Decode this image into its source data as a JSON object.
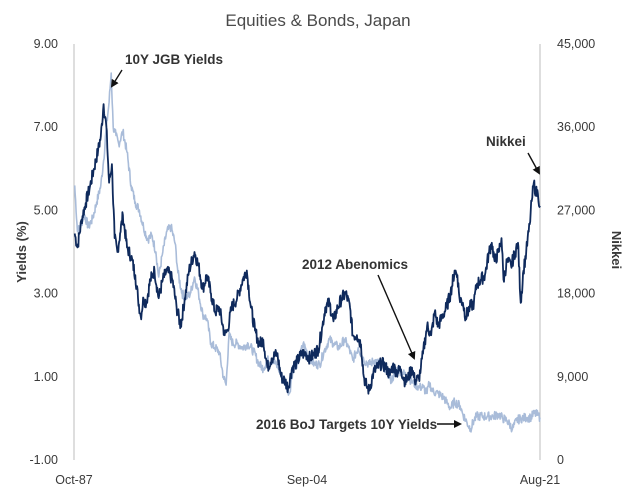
{
  "chart_data": {
    "type": "line",
    "title": "Equities & Bonds, Japan",
    "ylabel_left": "Yields (%)",
    "ylabel_right": "Nikkei",
    "x_range": [
      "Oct-87",
      "Aug-21"
    ],
    "x_tick_labels": [
      "Oct-87",
      "Sep-04",
      "Aug-21"
    ],
    "y_left_range": [
      -1,
      9
    ],
    "y_left_ticks": [
      "9.00",
      "7.00",
      "5.00",
      "3.00",
      "1.00",
      "-1.00"
    ],
    "y_right_range": [
      0,
      45000
    ],
    "y_right_ticks": [
      "45,000",
      "36,000",
      "27,000",
      "18,000",
      "9,000",
      "0"
    ],
    "grid": false,
    "series": [
      {
        "name": "Nikkei",
        "axis": "right",
        "color": "#0f2a5c",
        "points": [
          [
            1987.8,
            24500
          ],
          [
            1988.0,
            23000
          ],
          [
            1988.3,
            26000
          ],
          [
            1988.6,
            27800
          ],
          [
            1988.9,
            29500
          ],
          [
            1989.2,
            31500
          ],
          [
            1989.5,
            33500
          ],
          [
            1989.7,
            35000
          ],
          [
            1989.9,
            38500
          ],
          [
            1990.1,
            36000
          ],
          [
            1990.3,
            30000
          ],
          [
            1990.5,
            32000
          ],
          [
            1990.7,
            24000
          ],
          [
            1990.9,
            22500
          ],
          [
            1991.1,
            24500
          ],
          [
            1991.3,
            26500
          ],
          [
            1991.6,
            23000
          ],
          [
            1991.9,
            22000
          ],
          [
            1992.2,
            20000
          ],
          [
            1992.4,
            17500
          ],
          [
            1992.6,
            15500
          ],
          [
            1992.8,
            17500
          ],
          [
            1993.0,
            17000
          ],
          [
            1993.3,
            19500
          ],
          [
            1993.6,
            20500
          ],
          [
            1993.9,
            17500
          ],
          [
            1994.2,
            19500
          ],
          [
            1994.5,
            20500
          ],
          [
            1994.9,
            19500
          ],
          [
            1995.2,
            16500
          ],
          [
            1995.5,
            14500
          ],
          [
            1995.8,
            17500
          ],
          [
            1996.1,
            20500
          ],
          [
            1996.5,
            22500
          ],
          [
            1996.8,
            21000
          ],
          [
            1997.1,
            18500
          ],
          [
            1997.4,
            20000
          ],
          [
            1997.7,
            18000
          ],
          [
            1998.0,
            16000
          ],
          [
            1998.3,
            16500
          ],
          [
            1998.7,
            13500
          ],
          [
            1998.9,
            14000
          ],
          [
            1999.2,
            16500
          ],
          [
            1999.6,
            17500
          ],
          [
            2000.0,
            19500
          ],
          [
            2000.3,
            20500
          ],
          [
            2000.6,
            16500
          ],
          [
            2000.9,
            14000
          ],
          [
            2001.2,
            12500
          ],
          [
            2001.5,
            13000
          ],
          [
            2001.8,
            10000
          ],
          [
            2002.1,
            11000
          ],
          [
            2002.5,
            11500
          ],
          [
            2002.8,
            9000
          ],
          [
            2003.1,
            8500
          ],
          [
            2003.3,
            7800
          ],
          [
            2003.6,
            10000
          ],
          [
            2003.9,
            10500
          ],
          [
            2004.3,
            11500
          ],
          [
            2004.6,
            11500
          ],
          [
            2004.9,
            11000
          ],
          [
            2005.2,
            11500
          ],
          [
            2005.5,
            12000
          ],
          [
            2005.8,
            14500
          ],
          [
            2006.0,
            16500
          ],
          [
            2006.3,
            17000
          ],
          [
            2006.6,
            15000
          ],
          [
            2006.9,
            16500
          ],
          [
            2007.2,
            17500
          ],
          [
            2007.5,
            18000
          ],
          [
            2007.8,
            16500
          ],
          [
            2008.0,
            13500
          ],
          [
            2008.3,
            13500
          ],
          [
            2008.6,
            12500
          ],
          [
            2008.8,
            9000
          ],
          [
            2009.0,
            8000
          ],
          [
            2009.2,
            7500
          ],
          [
            2009.5,
            9500
          ],
          [
            2009.8,
            10000
          ],
          [
            2010.1,
            10500
          ],
          [
            2010.4,
            10000
          ],
          [
            2010.7,
            9200
          ],
          [
            2010.9,
            10200
          ],
          [
            2011.2,
            9500
          ],
          [
            2011.5,
            9800
          ],
          [
            2011.8,
            8500
          ],
          [
            2012.0,
            8800
          ],
          [
            2012.3,
            10000
          ],
          [
            2012.5,
            8600
          ],
          [
            2012.8,
            8800
          ],
          [
            2012.95,
            10000
          ],
          [
            2013.1,
            11500
          ],
          [
            2013.4,
            14500
          ],
          [
            2013.7,
            13500
          ],
          [
            2013.95,
            16000
          ],
          [
            2014.2,
            14500
          ],
          [
            2014.5,
            15500
          ],
          [
            2014.8,
            16500
          ],
          [
            2015.1,
            18000
          ],
          [
            2015.4,
            20500
          ],
          [
            2015.6,
            20000
          ],
          [
            2015.75,
            17500
          ],
          [
            2016.0,
            17000
          ],
          [
            2016.2,
            15500
          ],
          [
            2016.5,
            16500
          ],
          [
            2016.8,
            17000
          ],
          [
            2017.0,
            19000
          ],
          [
            2017.3,
            19500
          ],
          [
            2017.6,
            20000
          ],
          [
            2017.9,
            22500
          ],
          [
            2018.1,
            23500
          ],
          [
            2018.3,
            21500
          ],
          [
            2018.6,
            22500
          ],
          [
            2018.8,
            24000
          ],
          [
            2018.95,
            19500
          ],
          [
            2019.2,
            21500
          ],
          [
            2019.5,
            21000
          ],
          [
            2019.8,
            22500
          ],
          [
            2020.0,
            23500
          ],
          [
            2020.2,
            17000
          ],
          [
            2020.4,
            20500
          ],
          [
            2020.6,
            22500
          ],
          [
            2020.85,
            25500
          ],
          [
            2021.0,
            28000
          ],
          [
            2021.15,
            30000
          ],
          [
            2021.3,
            29000
          ],
          [
            2021.45,
            28800
          ],
          [
            2021.6,
            27500
          ]
        ]
      },
      {
        "name": "10Y JGB Yields",
        "axis": "left",
        "color": "#a9bcd9",
        "points": [
          [
            1987.8,
            5.6
          ],
          [
            1988.0,
            4.5
          ],
          [
            1988.2,
            4.6
          ],
          [
            1988.5,
            4.9
          ],
          [
            1988.8,
            4.6
          ],
          [
            1989.1,
            4.8
          ],
          [
            1989.4,
            5.2
          ],
          [
            1989.7,
            5.6
          ],
          [
            1989.9,
            6.2
          ],
          [
            1990.1,
            7.0
          ],
          [
            1990.3,
            7.6
          ],
          [
            1990.45,
            8.3
          ],
          [
            1990.6,
            7.0
          ],
          [
            1990.8,
            6.8
          ],
          [
            1991.0,
            6.6
          ],
          [
            1991.3,
            6.9
          ],
          [
            1991.6,
            6.4
          ],
          [
            1991.9,
            5.6
          ],
          [
            1992.2,
            5.2
          ],
          [
            1992.5,
            5.0
          ],
          [
            1992.8,
            4.6
          ],
          [
            1993.1,
            4.3
          ],
          [
            1993.4,
            4.4
          ],
          [
            1993.7,
            4.0
          ],
          [
            1993.9,
            3.4
          ],
          [
            1994.2,
            4.0
          ],
          [
            1994.5,
            4.5
          ],
          [
            1994.8,
            4.6
          ],
          [
            1995.1,
            4.2
          ],
          [
            1995.3,
            3.5
          ],
          [
            1995.6,
            3.0
          ],
          [
            1995.9,
            2.9
          ],
          [
            1996.2,
            3.0
          ],
          [
            1996.5,
            3.4
          ],
          [
            1996.8,
            3.0
          ],
          [
            1997.1,
            2.5
          ],
          [
            1997.4,
            2.4
          ],
          [
            1997.7,
            1.8
          ],
          [
            1998.0,
            1.7
          ],
          [
            1998.3,
            1.6
          ],
          [
            1998.6,
            1.0
          ],
          [
            1998.8,
            0.8
          ],
          [
            1999.0,
            2.0
          ],
          [
            1999.3,
            1.8
          ],
          [
            1999.6,
            1.8
          ],
          [
            2000.0,
            1.7
          ],
          [
            2000.4,
            1.8
          ],
          [
            2000.8,
            1.6
          ],
          [
            2001.2,
            1.3
          ],
          [
            2001.5,
            1.2
          ],
          [
            2001.8,
            1.4
          ],
          [
            2002.2,
            1.4
          ],
          [
            2002.6,
            1.2
          ],
          [
            2003.0,
            0.9
          ],
          [
            2003.4,
            0.6
          ],
          [
            2003.7,
            1.3
          ],
          [
            2004.0,
            1.3
          ],
          [
            2004.4,
            1.8
          ],
          [
            2004.8,
            1.5
          ],
          [
            2005.2,
            1.3
          ],
          [
            2005.6,
            1.3
          ],
          [
            2005.9,
            1.6
          ],
          [
            2006.3,
            1.9
          ],
          [
            2006.6,
            1.8
          ],
          [
            2007.0,
            1.7
          ],
          [
            2007.4,
            1.9
          ],
          [
            2007.7,
            1.7
          ],
          [
            2008.0,
            1.4
          ],
          [
            2008.4,
            1.7
          ],
          [
            2008.8,
            1.4
          ],
          [
            2009.2,
            1.3
          ],
          [
            2009.6,
            1.4
          ],
          [
            2010.0,
            1.3
          ],
          [
            2010.4,
            1.2
          ],
          [
            2010.8,
            0.9
          ],
          [
            2011.2,
            1.2
          ],
          [
            2011.6,
            1.1
          ],
          [
            2012.0,
            1.0
          ],
          [
            2012.4,
            0.85
          ],
          [
            2012.8,
            0.75
          ],
          [
            2013.1,
            0.75
          ],
          [
            2013.4,
            0.6
          ],
          [
            2013.55,
            0.85
          ],
          [
            2013.8,
            0.65
          ],
          [
            2014.2,
            0.6
          ],
          [
            2014.6,
            0.5
          ],
          [
            2014.9,
            0.35
          ],
          [
            2015.1,
            0.25
          ],
          [
            2015.4,
            0.4
          ],
          [
            2015.8,
            0.3
          ],
          [
            2016.0,
            0.1
          ],
          [
            2016.3,
            -0.1
          ],
          [
            2016.55,
            -0.25
          ],
          [
            2016.8,
            -0.05
          ],
          [
            2017.0,
            0.05
          ],
          [
            2017.4,
            0.05
          ],
          [
            2017.8,
            0.05
          ],
          [
            2018.2,
            0.05
          ],
          [
            2018.6,
            0.1
          ],
          [
            2018.9,
            0.0
          ],
          [
            2019.2,
            -0.05
          ],
          [
            2019.6,
            -0.25
          ],
          [
            2019.9,
            -0.05
          ],
          [
            2020.2,
            0.0
          ],
          [
            2020.6,
            0.02
          ],
          [
            2020.9,
            0.02
          ],
          [
            2021.2,
            0.12
          ],
          [
            2021.45,
            0.08
          ],
          [
            2021.6,
            0.02
          ]
        ]
      }
    ],
    "annotations": [
      "10Y JGB Yields",
      "Nikkei",
      "2012 Abenomics",
      "2016 BoJ Targets 10Y Yields"
    ]
  }
}
